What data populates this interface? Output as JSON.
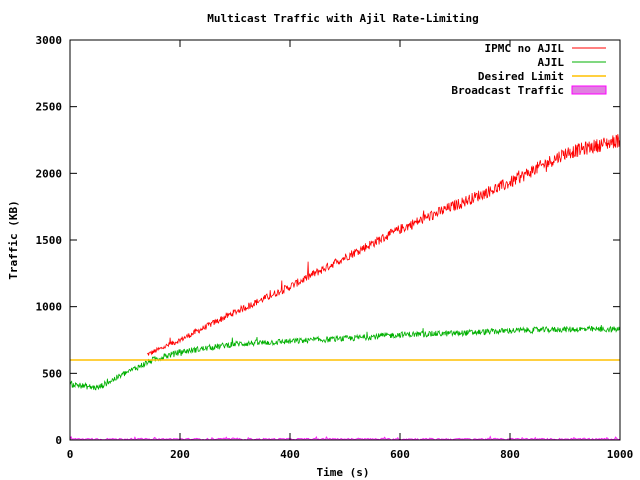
{
  "chart_data": {
    "type": "line",
    "title": "Multicast Traffic with Ajil Rate-Limiting",
    "xlabel": "Time (s)",
    "ylabel": "Traffic (KB)",
    "xlim": [
      0,
      1000
    ],
    "ylim": [
      0,
      3000
    ],
    "x_ticks": [
      0,
      200,
      400,
      600,
      800,
      1000
    ],
    "y_ticks": [
      0,
      500,
      1000,
      1500,
      2000,
      2500,
      3000
    ],
    "grid": false,
    "legend_position": "top-right",
    "series": [
      {
        "name": "IPMC no AJIL",
        "color": "#ff0000",
        "style": "line",
        "x": [
          140,
          200,
          300,
          400,
          500,
          600,
          700,
          800,
          900,
          1000
        ],
        "y": [
          640,
          750,
          960,
          1150,
          1370,
          1580,
          1760,
          1930,
          2150,
          2250
        ]
      },
      {
        "name": "AJIL",
        "color": "#00b000",
        "style": "line",
        "x": [
          0,
          50,
          100,
          150,
          200,
          300,
          400,
          500,
          600,
          700,
          800,
          900,
          1000
        ],
        "y": [
          420,
          390,
          500,
          600,
          660,
          720,
          740,
          760,
          790,
          800,
          820,
          830,
          830
        ]
      },
      {
        "name": "Desired Limit",
        "color": "#ffc000",
        "style": "line",
        "x": [
          0,
          1000
        ],
        "y": [
          600,
          600
        ]
      },
      {
        "name": "Broadcast Traffic",
        "color": "#ff00ff",
        "fill": "#e080e0",
        "style": "area",
        "x": [
          0,
          1000
        ],
        "y": [
          8,
          8
        ]
      }
    ]
  }
}
